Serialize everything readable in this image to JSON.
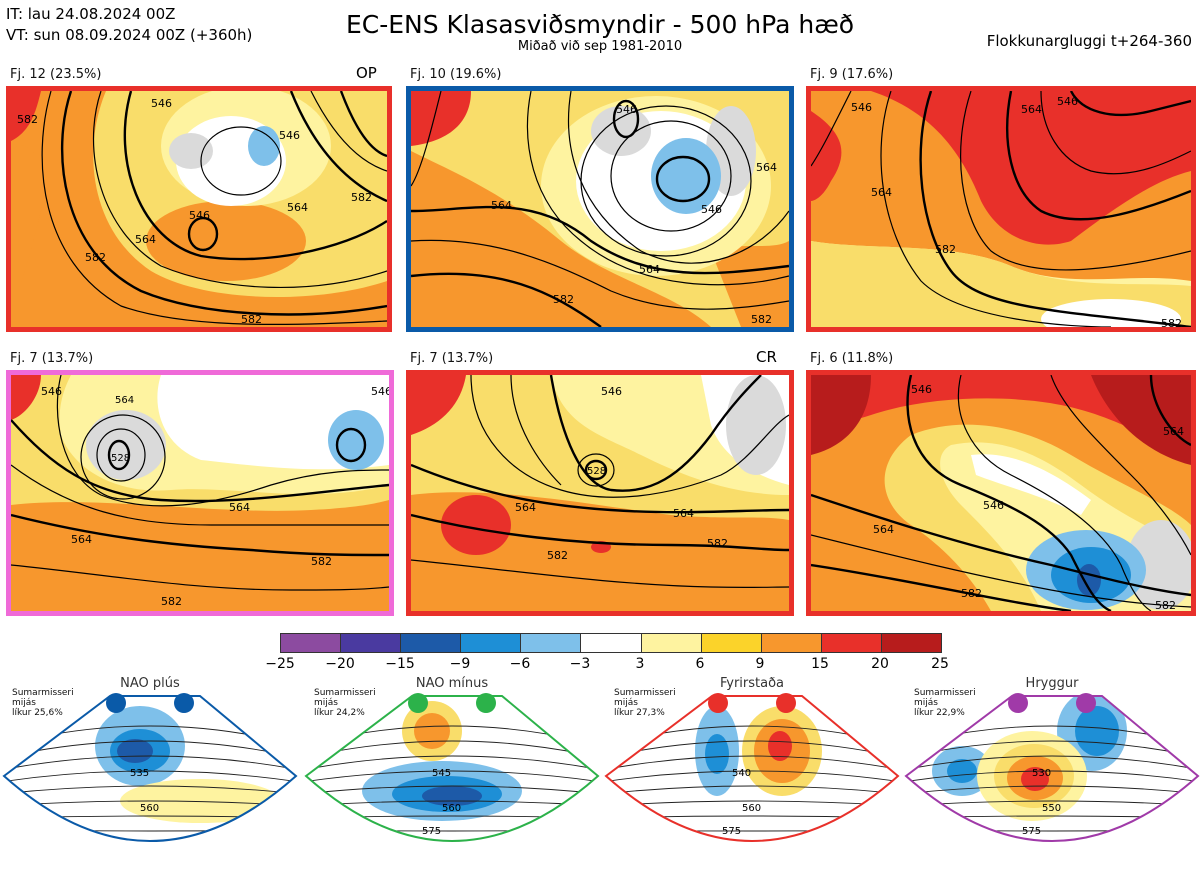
{
  "header": {
    "initial_time": "IT: lau 24.08.2024 00Z",
    "valid_time": "VT: sun 08.09.2024 00Z  (+360h)",
    "title": "EC-ENS Klasasviðsmyndir - 500 hPa hæð",
    "subtitle": "Miðað við sep 1981-2010",
    "window": "Flokkunargluggi t+264-360"
  },
  "panels": [
    {
      "label": "Fj. 12 (23.5%)",
      "tag": "OP",
      "border_color": "#e8302a",
      "contours": [
        "546",
        "546",
        "546",
        "564",
        "564",
        "582",
        "582",
        "582",
        "582"
      ]
    },
    {
      "label": "Fj. 10 (19.6%)",
      "tag": "",
      "border_color": "#0a5aa8",
      "contours": [
        "546",
        "546",
        "564",
        "564",
        "564",
        "582",
        "582"
      ]
    },
    {
      "label": "Fj. 9 (17.6%)",
      "tag": "",
      "border_color": "#e8302a",
      "contours": [
        "546",
        "546",
        "564",
        "564",
        "582",
        "582"
      ]
    },
    {
      "label": "Fj. 7 (13.7%)",
      "tag": "",
      "border_color": "#ef6ad8",
      "contours": [
        "528",
        "546",
        "546",
        "564",
        "564",
        "564",
        "582",
        "582"
      ]
    },
    {
      "label": "Fj. 7 (13.7%)",
      "tag": "CR",
      "border_color": "#e8302a",
      "contours": [
        "528",
        "546",
        "564",
        "564",
        "582",
        "582"
      ]
    },
    {
      "label": "Fj. 6 (11.8%)",
      "tag": "",
      "border_color": "#e8302a",
      "contours": [
        "546",
        "546",
        "564",
        "564",
        "582",
        "582"
      ]
    }
  ],
  "colorbar": {
    "ticks": [
      "−25",
      "−20",
      "−15",
      "−9",
      "−6",
      "−3",
      "3",
      "6",
      "9",
      "15",
      "20",
      "25"
    ],
    "colors": [
      "#8c4ba0",
      "#4a3aa0",
      "#1d5aa8",
      "#1e8fd6",
      "#7ec0ea",
      "#ffffff",
      "#fef3a0",
      "#fbd32a",
      "#f7972d",
      "#e8302a",
      "#b71c1c"
    ]
  },
  "regimes": [
    {
      "title": "NAO plús",
      "season": "Sumarmisseri",
      "group": "mijás",
      "likelihood": "líkur 25,6%",
      "color": "#0a5aa8",
      "contours": [
        "535",
        "560"
      ]
    },
    {
      "title": "NAO mínus",
      "season": "Sumarmisseri",
      "group": "mijás",
      "likelihood": "líkur 24,2%",
      "color": "#2cb24a",
      "contours": [
        "545",
        "560",
        "575"
      ]
    },
    {
      "title": "Fyrirstaða",
      "season": "Sumarmisseri",
      "group": "mijás",
      "likelihood": "líkur 27,3%",
      "color": "#e8302a",
      "contours": [
        "540",
        "560",
        "575"
      ]
    },
    {
      "title": "Hryggur",
      "season": "Sumarmisseri",
      "group": "mijás",
      "likelihood": "líkur 22,9%",
      "color": "#a03aa8",
      "contours": [
        "530",
        "550",
        "575"
      ]
    }
  ],
  "icons": {
    "regime_dot": "circle-marker"
  }
}
